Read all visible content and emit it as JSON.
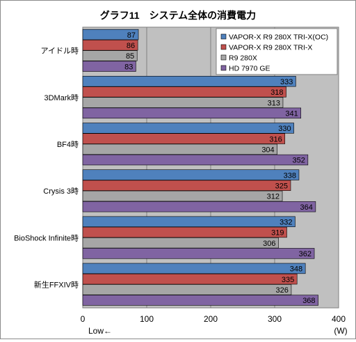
{
  "chart_data": {
    "type": "bar",
    "orientation": "horizontal",
    "title": "グラフ11　システム全体の消費電力",
    "categories": [
      "アイドル時",
      "3DMark時",
      "BF4時",
      "Crysis 3時",
      "BioShock Infinite時",
      "新生FFXIV時"
    ],
    "series": [
      {
        "name": "VAPOR-X R9 280X TRI-X(OC)",
        "color": "#4f81bd",
        "values": [
          87,
          333,
          330,
          338,
          332,
          348
        ]
      },
      {
        "name": "VAPOR-X R9 280X TRI-X",
        "color": "#c0504d",
        "values": [
          86,
          318,
          316,
          325,
          319,
          335
        ]
      },
      {
        "name": "R9 280X",
        "color": "#a6a6a6",
        "values": [
          85,
          313,
          304,
          312,
          306,
          326
        ]
      },
      {
        "name": "HD 7970 GE",
        "color": "#8064a2",
        "values": [
          83,
          341,
          352,
          364,
          362,
          368
        ]
      }
    ],
    "xlim": [
      0,
      400
    ],
    "x_ticks": [
      0,
      100,
      200,
      300,
      400
    ],
    "x_unit": "(W)",
    "x_note": "Low←",
    "legend_position": "top-right",
    "grid": true,
    "plot_background": "#c0c0c0"
  }
}
